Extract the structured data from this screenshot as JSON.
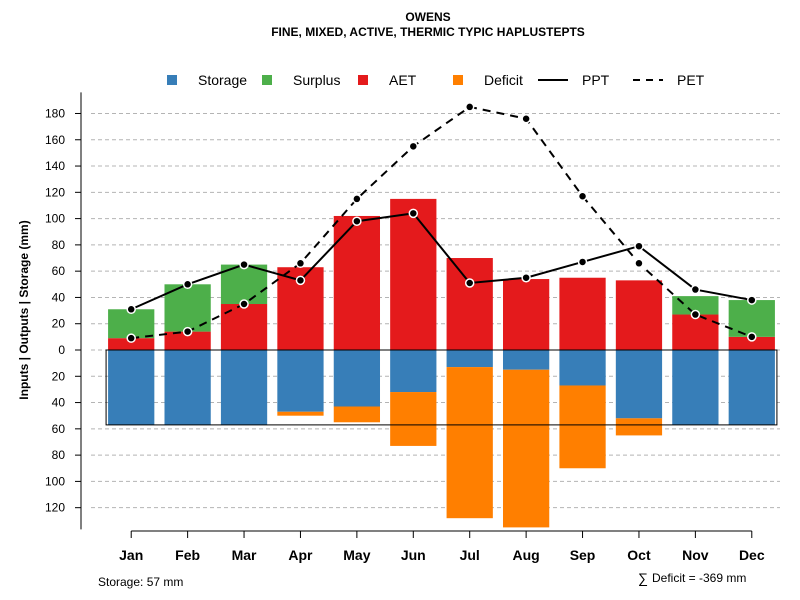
{
  "chart_data": {
    "type": "bar",
    "title": "OWENS",
    "subtitle": "FINE, MIXED, ACTIVE, THERMIC TYPIC HAPLUSTEPTS",
    "ylabel": "Inputs | Outputs | Storage     (mm)",
    "ylim": [
      -135,
      190
    ],
    "y_ticks": [
      180,
      160,
      140,
      120,
      100,
      80,
      60,
      40,
      20,
      0,
      -20,
      -40,
      -60,
      -80,
      -100,
      -120
    ],
    "y_tick_labels": [
      "180",
      "160",
      "140",
      "120",
      "100",
      "80",
      "60",
      "40",
      "20",
      "0",
      "20",
      "40",
      "60",
      "80",
      "100",
      "120"
    ],
    "categories": [
      "Jan",
      "Feb",
      "Mar",
      "Apr",
      "May",
      "Jun",
      "Jul",
      "Aug",
      "Sep",
      "Oct",
      "Nov",
      "Dec"
    ],
    "legend": {
      "placement": "top",
      "items": [
        {
          "label": "Storage",
          "kind": "box",
          "color": "#377EB8"
        },
        {
          "label": "Surplus",
          "kind": "box",
          "color": "#4DAF4A"
        },
        {
          "label": "AET",
          "kind": "box",
          "color": "#E41A1C"
        },
        {
          "label": "Deficit",
          "kind": "box",
          "color": "#FF7F00"
        },
        {
          "label": "PPT",
          "kind": "line-solid",
          "color": "#000000"
        },
        {
          "label": "PET",
          "kind": "line-dashed",
          "color": "#000000"
        }
      ]
    },
    "series": [
      {
        "name": "AET",
        "color": "#E41A1C",
        "values": [
          9,
          14,
          35,
          63,
          102,
          115,
          70,
          54,
          55,
          53,
          27,
          10
        ]
      },
      {
        "name": "Surplus",
        "color": "#4DAF4A",
        "values": [
          22,
          36,
          30,
          0,
          0,
          0,
          0,
          0,
          0,
          0,
          14,
          28
        ]
      },
      {
        "name": "Storage",
        "color": "#377EB8",
        "values": [
          57,
          57,
          57,
          47,
          43,
          32,
          13,
          15,
          27,
          52,
          57,
          57
        ]
      },
      {
        "name": "Deficit",
        "color": "#FF7F00",
        "values": [
          0,
          0,
          0,
          3,
          12,
          41,
          115,
          120,
          63,
          13,
          0,
          0
        ]
      },
      {
        "name": "PPT",
        "color": "#000000",
        "style": "solid",
        "values": [
          31,
          50,
          65,
          53,
          98,
          104,
          51,
          55,
          67,
          79,
          46,
          38
        ]
      },
      {
        "name": "PET",
        "color": "#000000",
        "style": "dashed",
        "values": [
          9,
          14,
          35,
          66,
          115,
          155,
          185,
          176,
          117,
          66,
          27,
          10
        ]
      }
    ],
    "storage_capacity": 57,
    "footnotes": {
      "storage": "Storage: 57 mm",
      "deficit_symbol": "∑",
      "deficit": "Deficit = -369 mm"
    }
  }
}
